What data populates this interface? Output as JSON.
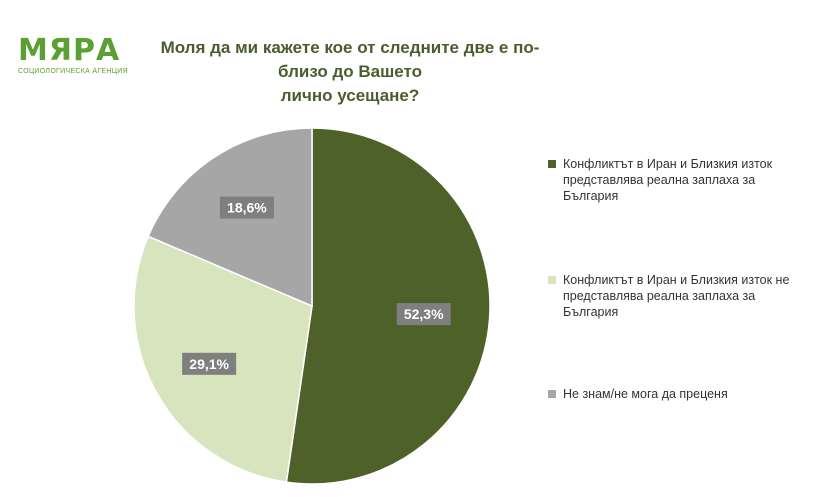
{
  "logo": {
    "name": "МЯРА",
    "subtitle": "СОЦИОЛОГИЧЕСКА АГЕНЦИЯ"
  },
  "title_line1": "Моля да ми кажете кое от следните две е по-близо до Вашето",
  "title_line2": "лично усещане?",
  "chart_data": {
    "type": "pie",
    "title": "Моля да ми кажете кое от следните две е по-близо до Вашето лично усещане?",
    "series": [
      {
        "name": "Конфликтът в Иран и Близкия изток представлява реална заплаха за България",
        "value": 52.3,
        "label": "52,3%",
        "color": "#4e6128"
      },
      {
        "name": "Конфликтът в Иран и Близкия изток не представлява реална заплаха за България",
        "value": 29.1,
        "label": "29,1%",
        "color": "#d7e4bd"
      },
      {
        "name": "Не знам/не мога да преценя",
        "value": 18.6,
        "label": "18,6%",
        "color": "#a6a6a6"
      }
    ],
    "start": "12 o'clock",
    "direction": "clockwise",
    "data_label_style": "dark-gray box, white bold text",
    "legend_position": "right"
  }
}
